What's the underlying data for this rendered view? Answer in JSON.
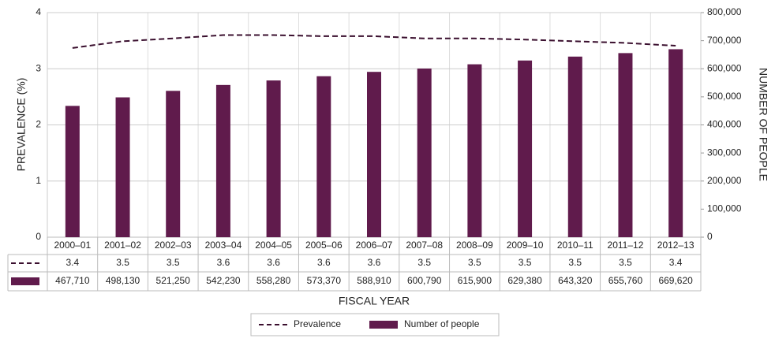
{
  "chart_data": {
    "type": "bar-line",
    "categories": [
      "2000–01",
      "2001–02",
      "2002–03",
      "2003–04",
      "2004–05",
      "2005–06",
      "2006–07",
      "2007–08",
      "2008–09",
      "2009–10",
      "2010–11",
      "2011–12",
      "2012–13"
    ],
    "y_label": "PREVALENCE (%)",
    "y2_label": "NUMBER OF PEOPLE",
    "x_label": "FISCAL YEAR",
    "ylim": [
      0,
      4
    ],
    "yticks": [
      0,
      1,
      2,
      3,
      4
    ],
    "y2lim": [
      0,
      800000
    ],
    "y2ticks": [
      0,
      {
        "value": 100000,
        "label": "100,000"
      },
      {
        "value": 200000,
        "label": "200,000"
      },
      {
        "value": 300000,
        "label": "300,000"
      },
      {
        "value": 400000,
        "label": "400,000"
      },
      {
        "value": 500000,
        "label": "500,000"
      },
      {
        "value": 600000,
        "label": "600,000"
      },
      {
        "value": 700000,
        "label": "700,000"
      },
      {
        "value": 800000,
        "label": "800,000"
      }
    ],
    "grid": true,
    "series": [
      {
        "name": "Prevalence",
        "type": "line",
        "color": "#3a0f2e",
        "axis": "y",
        "values": [
          3.37,
          3.49,
          3.54,
          3.6,
          3.6,
          3.58,
          3.58,
          3.54,
          3.54,
          3.52,
          3.49,
          3.46,
          3.41
        ],
        "value_labels": [
          "3.4",
          "3.5",
          "3.5",
          "3.6",
          "3.6",
          "3.6",
          "3.6",
          "3.5",
          "3.5",
          "3.5",
          "3.5",
          "3.5",
          "3.4"
        ]
      },
      {
        "name": "Number of people",
        "type": "bar",
        "color": "#601b4c",
        "axis": "y2",
        "values": [
          467710,
          498130,
          521250,
          542230,
          558280,
          573370,
          588910,
          600790,
          615900,
          629380,
          643320,
          655760,
          669620
        ],
        "value_labels": [
          "467,710",
          "498,130",
          "521,250",
          "542,230",
          "558,280",
          "573,370",
          "588,910",
          "600,790",
          "615,900",
          "629,380",
          "643,320",
          "655,760",
          "669,620"
        ]
      }
    ]
  }
}
